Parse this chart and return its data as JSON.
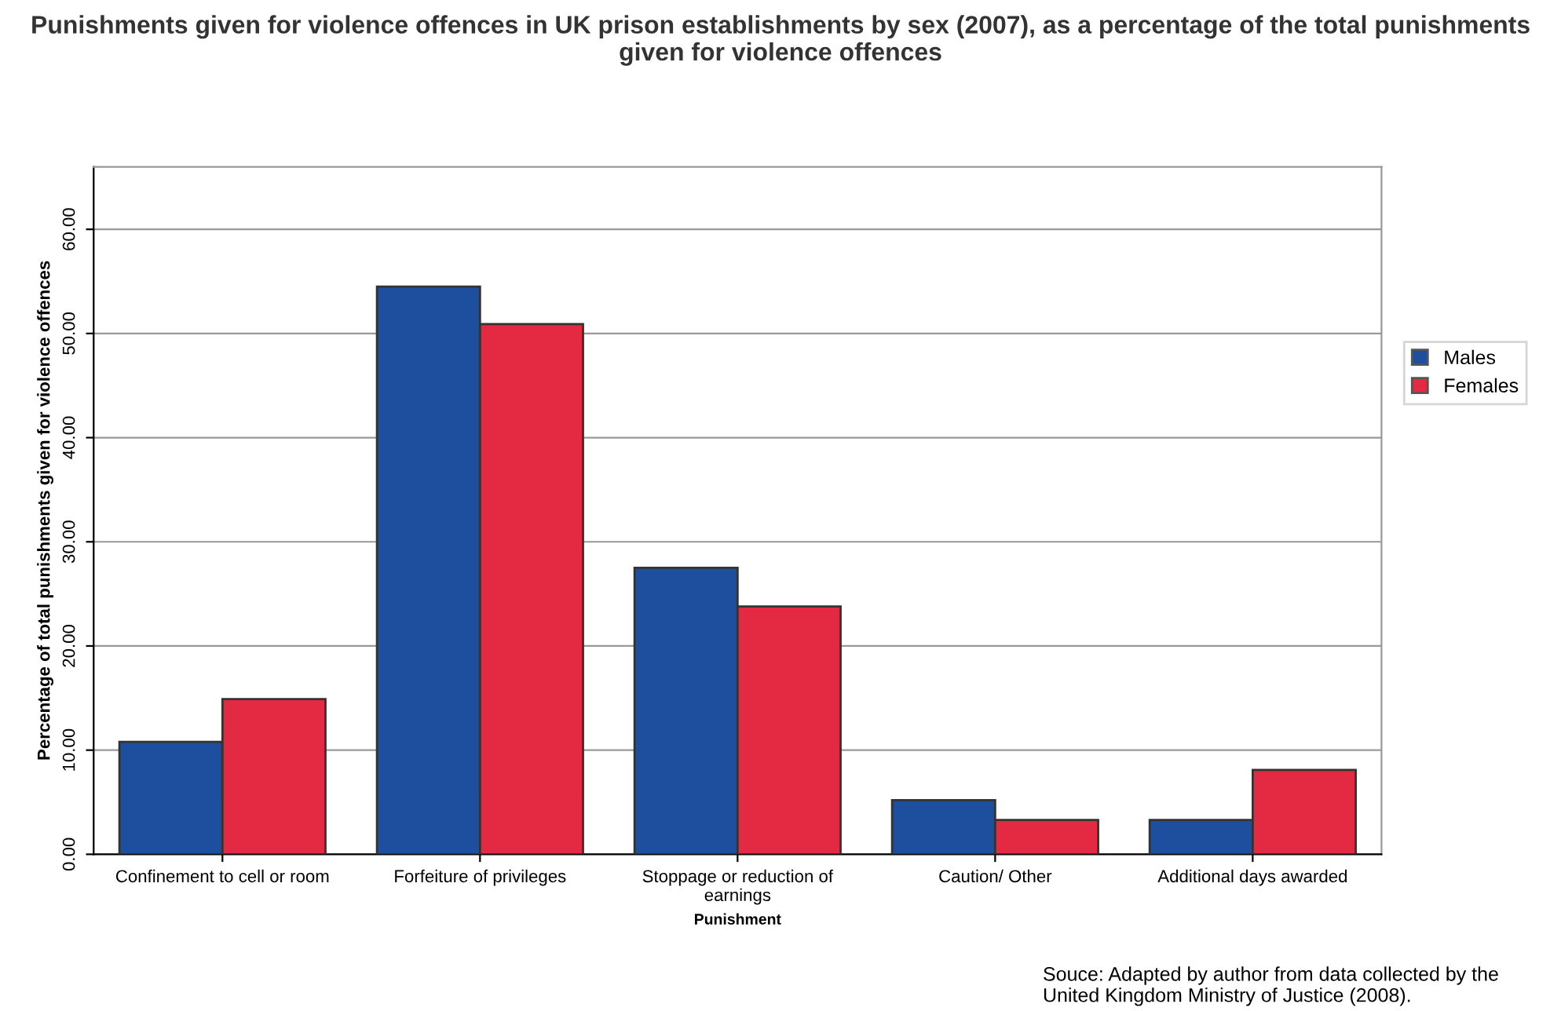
{
  "chart_data": {
    "type": "bar",
    "title": "Punishments given for violence offences in UK prison establishments by sex (2007), as a percentage of the total punishments given for violence offences",
    "xlabel": "Punishment",
    "ylabel": "Percentage of total punishments given for violence offences",
    "categories": [
      "Confinement to cell or room",
      "Forfeiture of privileges",
      "Stoppage or reduction of\nearnings",
      "Caution/ Other",
      "Additional days awarded"
    ],
    "series": [
      {
        "name": "Males",
        "color": "#1d4f9e",
        "values": [
          10.8,
          54.5,
          27.5,
          5.2,
          3.3
        ]
      },
      {
        "name": "Females",
        "color": "#e42a42",
        "values": [
          14.9,
          50.9,
          23.8,
          3.3,
          8.1
        ]
      }
    ],
    "ylim": [
      0,
      66
    ],
    "yticks": [
      {
        "value": 0,
        "label": "0.00"
      },
      {
        "value": 10,
        "label": "10.00"
      },
      {
        "value": 20,
        "label": "20.00"
      },
      {
        "value": 30,
        "label": "30.00"
      },
      {
        "value": 40,
        "label": "40.00"
      },
      {
        "value": 50,
        "label": "50.00"
      },
      {
        "value": 60,
        "label": "60.00"
      }
    ],
    "grid": "y",
    "legend": "right",
    "annotations": [
      "Souce: Adapted by author from data collected by the United Kingdom Ministry of Justice (2008)."
    ]
  }
}
